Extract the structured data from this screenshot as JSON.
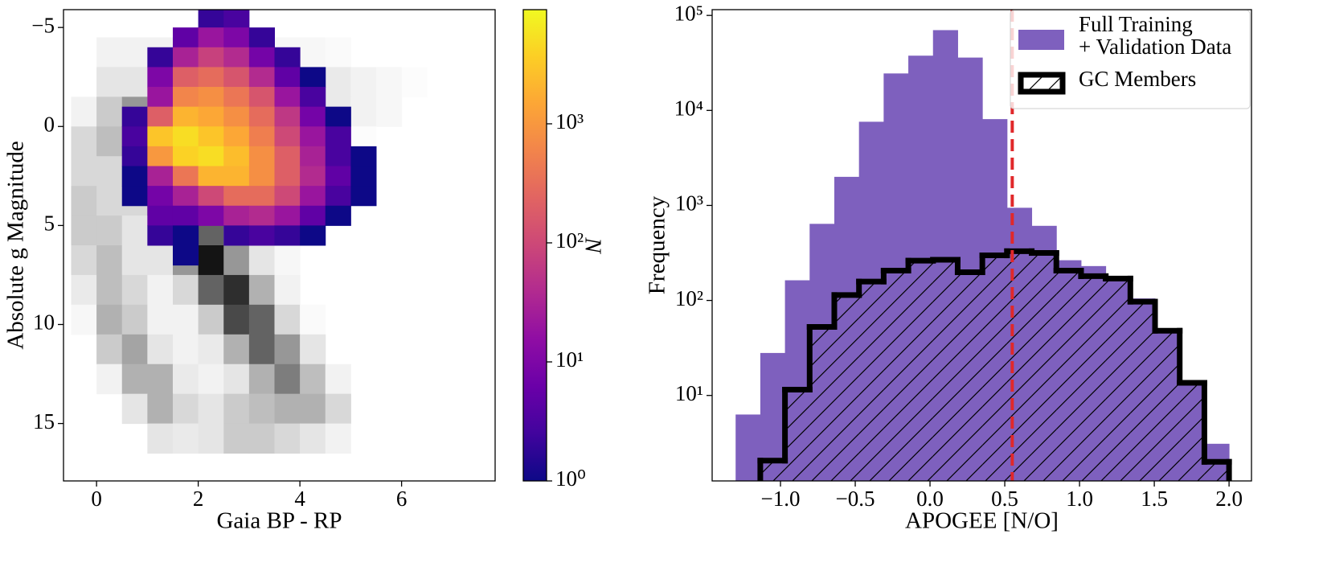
{
  "chart_data": [
    {
      "type": "hist2d",
      "xlabel": "Gaia BP - RP",
      "ylabel": "Absolute g Magnitude",
      "xlim": [
        -0.65,
        7.84
      ],
      "ylim": [
        17.9,
        -5.9
      ],
      "xticks": [
        0,
        2,
        4,
        6
      ],
      "yticks": [
        {
          "value": -5,
          "label": "−5"
        },
        0,
        5,
        10,
        15
      ],
      "background": {
        "colormap": "gray",
        "x_edges": [
          -0.5,
          0,
          0.5,
          1,
          1.5,
          2,
          2.5,
          3,
          3.5,
          4,
          4.5,
          5,
          5.5,
          6,
          6.5
        ],
        "y_edges": [
          -4.5,
          -3,
          -1.5,
          0,
          1.5,
          3,
          4.5,
          6,
          7.5,
          9,
          10.5,
          12,
          13.5,
          15,
          16.5
        ],
        "values": [
          [
            0,
            5,
            5,
            5,
            5,
            5,
            5,
            5,
            3,
            3,
            2,
            0,
            0,
            0
          ],
          [
            0,
            10,
            10,
            10,
            10,
            10,
            10,
            10,
            10,
            8,
            8,
            5,
            3,
            1
          ],
          [
            5,
            20,
            40,
            30,
            20,
            20,
            15,
            15,
            12,
            10,
            8,
            5,
            3,
            0
          ],
          [
            15,
            25,
            50,
            60,
            30,
            20,
            15,
            10,
            8,
            5,
            3,
            1,
            0,
            0
          ],
          [
            15,
            15,
            30,
            70,
            40,
            15,
            10,
            5,
            3,
            2,
            0,
            0,
            0,
            0
          ],
          [
            20,
            15,
            15,
            60,
            80,
            30,
            10,
            5,
            2,
            0,
            0,
            0,
            0,
            0
          ],
          [
            20,
            20,
            10,
            20,
            90,
            60,
            20,
            5,
            2,
            0,
            0,
            0,
            0,
            0
          ],
          [
            15,
            25,
            10,
            10,
            40,
            90,
            40,
            10,
            3,
            0,
            0,
            0,
            0,
            0
          ],
          [
            8,
            25,
            15,
            5,
            15,
            60,
            80,
            30,
            5,
            0,
            0,
            0,
            0,
            0
          ],
          [
            3,
            30,
            20,
            5,
            5,
            20,
            70,
            60,
            15,
            2,
            0,
            0,
            0,
            0
          ],
          [
            0,
            20,
            35,
            10,
            5,
            8,
            30,
            60,
            40,
            10,
            0,
            0,
            0,
            0
          ],
          [
            0,
            5,
            30,
            30,
            8,
            5,
            10,
            30,
            50,
            25,
            5,
            0,
            0,
            0
          ],
          [
            0,
            0,
            10,
            30,
            15,
            10,
            20,
            25,
            30,
            30,
            15,
            0,
            0,
            0
          ],
          [
            0,
            0,
            0,
            10,
            8,
            10,
            20,
            20,
            15,
            10,
            5,
            0,
            0,
            0
          ]
        ]
      },
      "x_edges": [
        0.5,
        1,
        1.5,
        2,
        2.5,
        3,
        3.5,
        4,
        4.5,
        5,
        5.5
      ],
      "y_edges": [
        -6,
        -5,
        -4,
        -3,
        -2,
        -1,
        0,
        1,
        2,
        3,
        4,
        5,
        6,
        7
      ],
      "counts": [
        [
          null,
          null,
          null,
          2,
          3,
          null,
          null,
          null,
          null,
          null
        ],
        [
          null,
          null,
          5,
          20,
          10,
          2,
          null,
          null,
          null,
          null
        ],
        [
          null,
          2,
          30,
          80,
          40,
          8,
          2,
          null,
          null,
          null
        ],
        [
          null,
          10,
          200,
          300,
          150,
          40,
          5,
          1,
          null,
          null
        ],
        [
          null,
          20,
          600,
          800,
          400,
          150,
          20,
          3,
          null,
          null
        ],
        [
          2,
          200,
          2000,
          1500,
          800,
          300,
          60,
          8,
          1,
          null
        ],
        [
          3,
          3000,
          5000,
          3000,
          1500,
          500,
          100,
          20,
          3,
          null
        ],
        [
          2,
          1000,
          4000,
          5000,
          2500,
          800,
          200,
          30,
          3,
          1
        ],
        [
          1,
          30,
          400,
          2000,
          2000,
          800,
          200,
          40,
          5,
          1
        ],
        [
          1,
          8,
          30,
          100,
          300,
          300,
          100,
          20,
          3,
          1
        ],
        [
          null,
          5,
          5,
          10,
          30,
          40,
          20,
          5,
          1,
          null
        ],
        [
          null,
          2,
          1,
          null,
          2,
          3,
          2,
          1,
          null,
          null
        ],
        [
          null,
          null,
          1,
          null,
          null,
          null,
          null,
          null,
          null,
          null
        ]
      ],
      "colorbar": {
        "label": "N",
        "colormap": "plasma",
        "log": true,
        "lim": [
          1,
          9100
        ],
        "ticks": [
          {
            "value": 1,
            "label": "10⁰"
          },
          {
            "value": 10,
            "label": "10¹"
          },
          {
            "value": 100,
            "label": "10²"
          },
          {
            "value": 1000,
            "label": "10³"
          }
        ]
      }
    },
    {
      "type": "histogram",
      "xlabel": "APOGEE [N/O]",
      "ylabel": "Frequency",
      "log_y": true,
      "xlim": [
        -1.457,
        2.15
      ],
      "ylim": [
        1.26,
        115000
      ],
      "xticks": [
        {
          "value": -1,
          "label": "−1.0"
        },
        {
          "value": -0.5,
          "label": "−0.5"
        },
        {
          "value": 0,
          "label": "0.0"
        },
        {
          "value": 0.5,
          "label": "0.5"
        },
        {
          "value": 1,
          "label": "1.0"
        },
        {
          "value": 1.5,
          "label": "1.5"
        },
        {
          "value": 2,
          "label": "2.0"
        }
      ],
      "yticks": [
        {
          "value": 10,
          "label": "10¹"
        },
        {
          "value": 100,
          "label": "10²"
        },
        {
          "value": 1000,
          "label": "10³"
        },
        {
          "value": 10000,
          "label": "10⁴"
        },
        {
          "value": 100000,
          "label": "10⁵"
        }
      ],
      "bins": [
        -1.3,
        -1.135,
        -0.97,
        -0.805,
        -0.64,
        -0.475,
        -0.31,
        -0.145,
        0.02,
        0.185,
        0.35,
        0.515,
        0.68,
        0.845,
        1.01,
        1.175,
        1.34,
        1.505,
        1.67,
        1.835,
        2.0
      ],
      "series": [
        {
          "name": "Full Training\n+ Validation Data",
          "color": "#7e60be",
          "style": "filled",
          "values": [
            6.3,
            28,
            163,
            640,
            2000,
            7600,
            24500,
            37700,
            70000,
            36000,
            8100,
            945,
            610,
            265,
            230,
            180,
            105,
            48,
            14,
            3.1
          ]
        },
        {
          "name": "GC Members",
          "color": "#000000",
          "style": "step",
          "hatch": "/",
          "values": [
            0,
            2.06,
            11.5,
            52.6,
            114,
            158,
            206,
            262,
            268,
            198,
            298,
            330,
            316,
            206,
            180,
            170,
            97,
            48,
            13.6,
            2.0
          ]
        }
      ],
      "vline": {
        "x": 0.55,
        "color": "#e0282a"
      },
      "legend": "upper right"
    }
  ]
}
